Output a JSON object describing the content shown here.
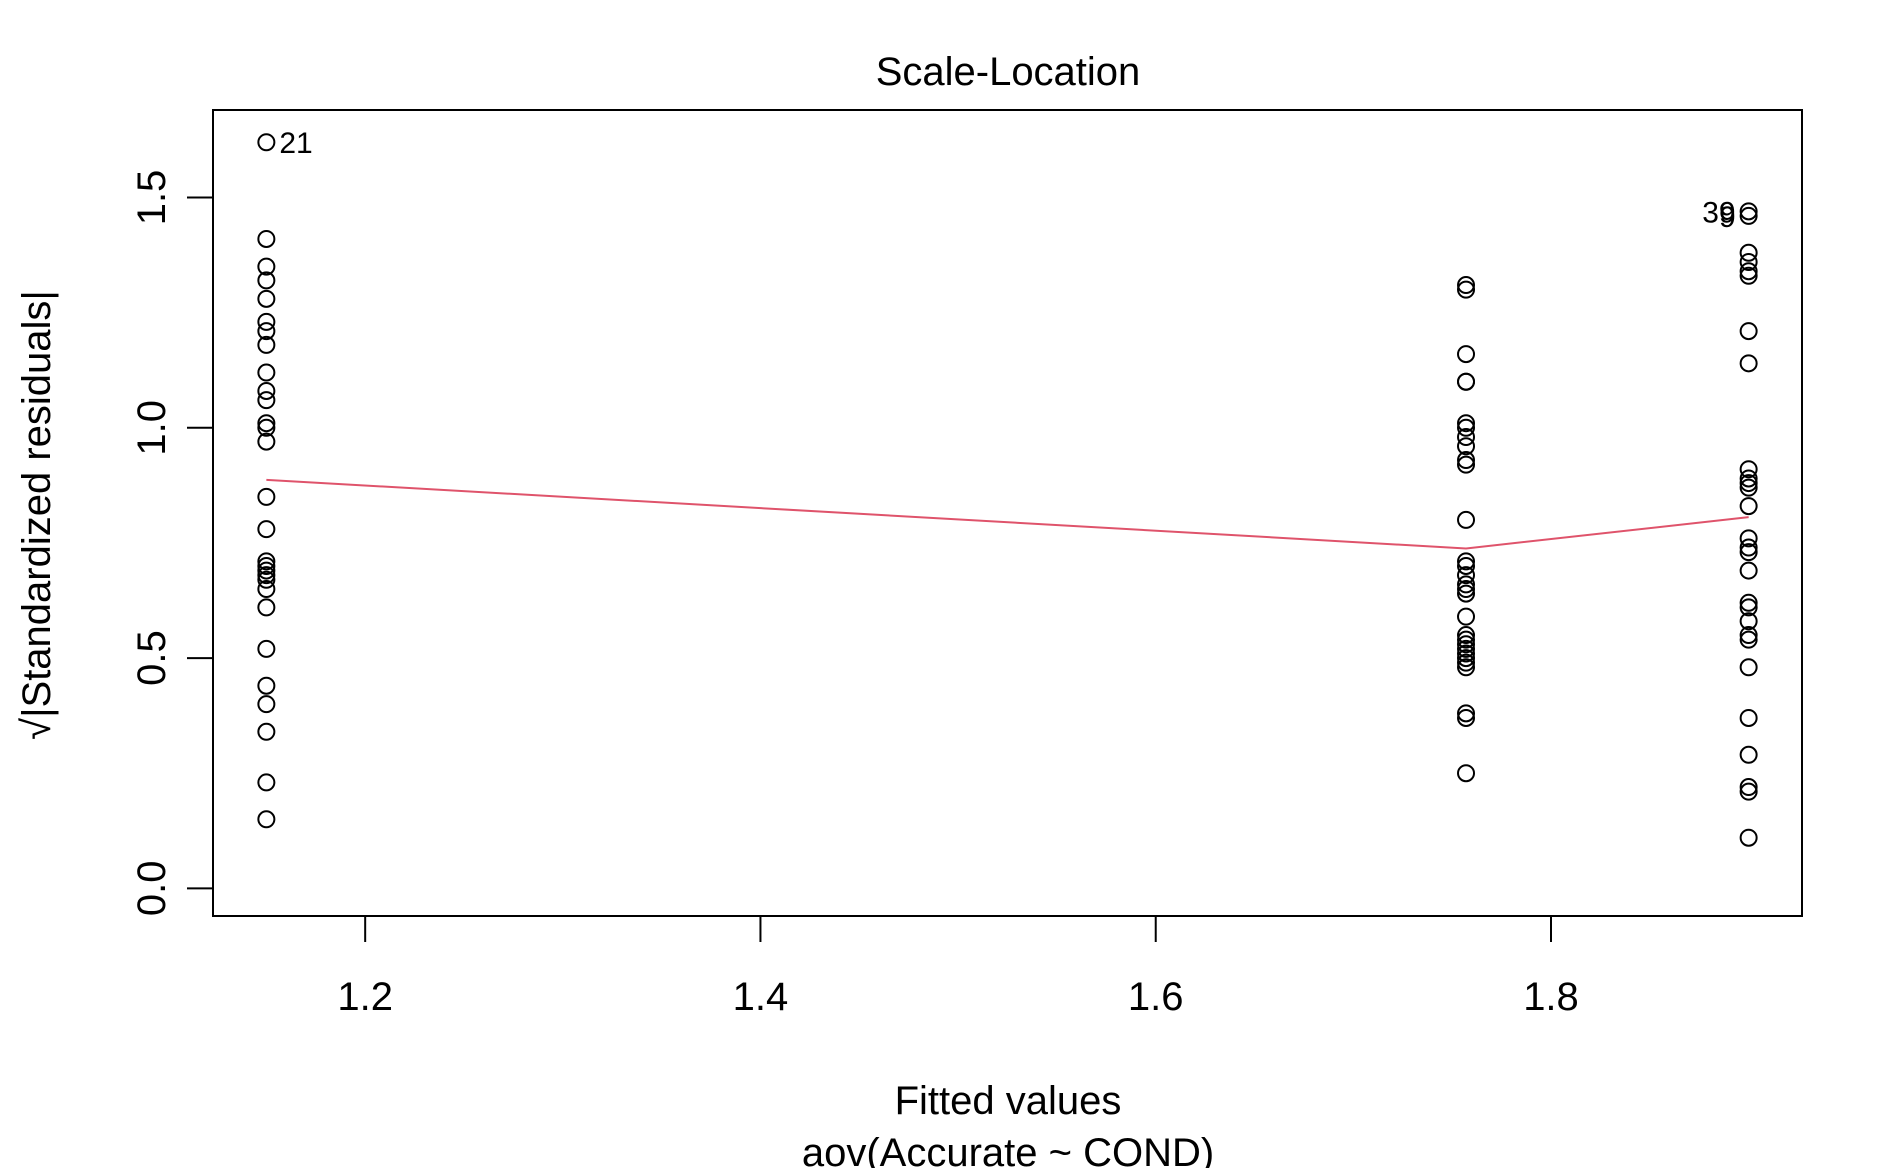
{
  "chart_data": {
    "type": "scatter",
    "title": "Scale-Location",
    "xlabel": "Fitted values",
    "xsublabel": "aov(Accurate ~ COND)",
    "ylabel": "√|Standardized residuals|",
    "xlim": [
      1.123,
      1.927
    ],
    "ylim": [
      -0.06,
      1.69
    ],
    "x_ticks": [
      1.2,
      1.4,
      1.6,
      1.8
    ],
    "x_tick_labels": [
      "1.2",
      "1.4",
      "1.6",
      "1.8"
    ],
    "y_ticks": [
      0.0,
      0.5,
      1.0,
      1.5
    ],
    "y_tick_labels": [
      "0.0",
      "0.5",
      "1.0",
      "1.5"
    ],
    "grid": false,
    "colors": {
      "points": "#000000",
      "smoother": "#DF536B"
    },
    "series": [
      {
        "x": 1.15,
        "y": [
          1.62,
          1.41,
          1.35,
          1.32,
          1.28,
          1.23,
          1.21,
          1.18,
          1.12,
          1.08,
          1.06,
          1.01,
          1.0,
          0.97,
          0.85,
          0.78,
          0.71,
          0.7,
          0.69,
          0.68,
          0.67,
          0.65,
          0.61,
          0.52,
          0.44,
          0.4,
          0.34,
          0.23,
          0.15
        ]
      },
      {
        "x": 1.757,
        "y": [
          1.31,
          1.3,
          1.16,
          1.1,
          1.1,
          1.01,
          1.0,
          0.98,
          0.96,
          0.93,
          0.92,
          0.8,
          0.71,
          0.7,
          0.68,
          0.66,
          0.65,
          0.64,
          0.59,
          0.55,
          0.54,
          0.53,
          0.52,
          0.51,
          0.5,
          0.49,
          0.48,
          0.38,
          0.37,
          0.25
        ]
      },
      {
        "x": 1.9,
        "y": [
          1.47,
          1.46,
          1.38,
          1.36,
          1.34,
          1.33,
          1.21,
          1.14,
          0.91,
          0.89,
          0.88,
          0.87,
          0.83,
          0.76,
          0.74,
          0.73,
          0.69,
          0.62,
          0.61,
          0.58,
          0.55,
          0.54,
          0.48,
          0.37,
          0.29,
          0.22,
          0.21,
          0.11
        ]
      }
    ],
    "smoother": {
      "x": [
        1.15,
        1.757,
        1.9
      ],
      "y": [
        0.887,
        0.738,
        0.806
      ]
    },
    "point_labels": [
      {
        "text": "21",
        "x": 1.15,
        "y": 1.62
      },
      {
        "text": "39",
        "x": 1.9,
        "y": 1.47
      },
      {
        "text": "9",
        "x": 1.9,
        "y": 1.46
      }
    ]
  }
}
